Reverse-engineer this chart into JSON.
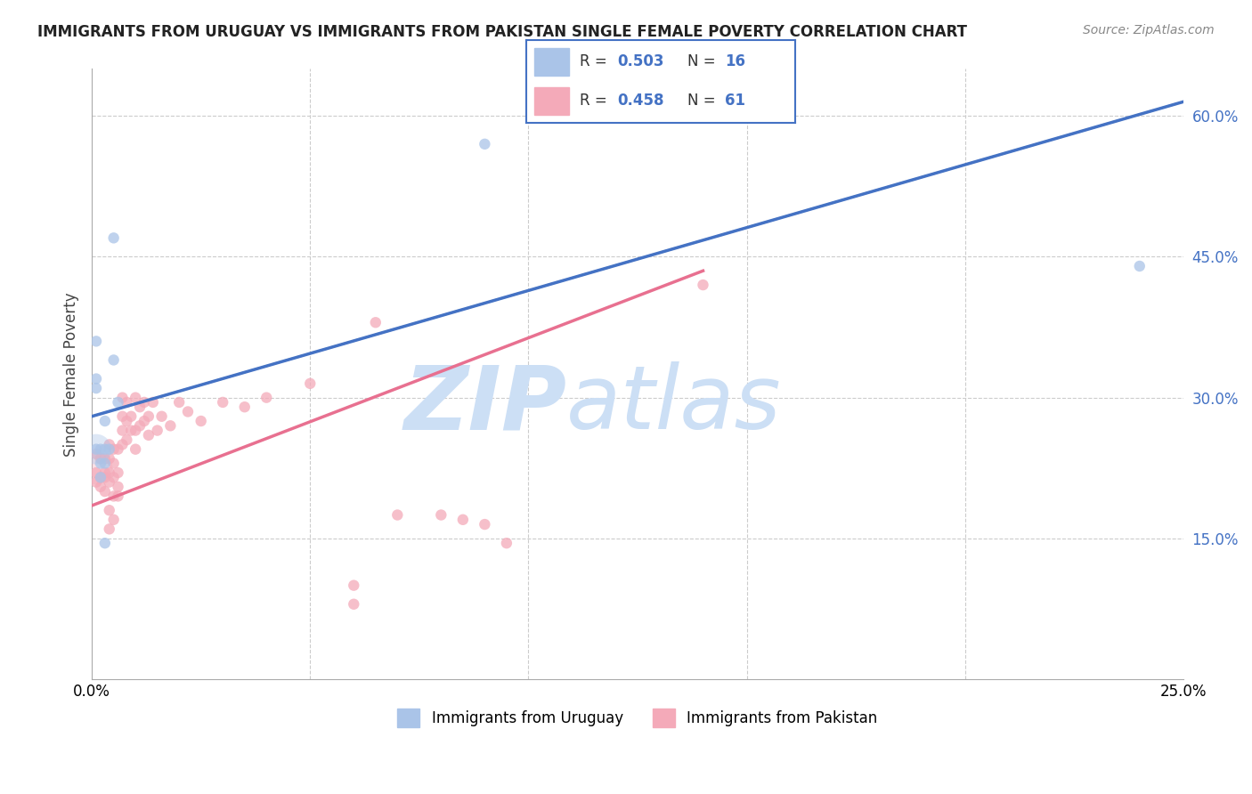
{
  "title": "IMMIGRANTS FROM URUGUAY VS IMMIGRANTS FROM PAKISTAN SINGLE FEMALE POVERTY CORRELATION CHART",
  "source": "Source: ZipAtlas.com",
  "ylabel": "Single Female Poverty",
  "xlim": [
    0.0,
    0.25
  ],
  "ylim": [
    0.0,
    0.65
  ],
  "x_ticks": [
    0.0,
    0.05,
    0.1,
    0.15,
    0.2,
    0.25
  ],
  "x_tick_labels": [
    "0.0%",
    "",
    "",
    "",
    "",
    "25.0%"
  ],
  "y_ticks_right": [
    0.15,
    0.3,
    0.45,
    0.6
  ],
  "y_tick_labels_right": [
    "15.0%",
    "30.0%",
    "45.0%",
    "60.0%"
  ],
  "background_color": "#ffffff",
  "grid_color": "#cccccc",
  "watermark_zip": "ZIP",
  "watermark_atlas": "atlas",
  "watermark_color_zip": "#ccdff5",
  "watermark_color_atlas": "#ccdff5",
  "uruguay_color": "#aac4e8",
  "pakistan_color": "#f4aab9",
  "trendline_uruguay_color": "#4472c4",
  "trendline_pakistan_color": "#e87090",
  "trendline_extension_color": "#c0c0c0",
  "r_n_color": "#4472c4",
  "legend_border_color": "#4472c4",
  "uruguay_trendline": [
    [
      0.0,
      0.28
    ],
    [
      0.25,
      0.615
    ]
  ],
  "pakistan_trendline": [
    [
      0.0,
      0.185
    ],
    [
      0.14,
      0.435
    ]
  ],
  "uruguay_scatter": [
    [
      0.001,
      0.245
    ],
    [
      0.002,
      0.245
    ],
    [
      0.003,
      0.245
    ],
    [
      0.004,
      0.245
    ],
    [
      0.002,
      0.23
    ],
    [
      0.003,
      0.23
    ],
    [
      0.002,
      0.215
    ],
    [
      0.001,
      0.32
    ],
    [
      0.001,
      0.36
    ],
    [
      0.005,
      0.34
    ],
    [
      0.001,
      0.31
    ],
    [
      0.006,
      0.295
    ],
    [
      0.003,
      0.275
    ],
    [
      0.003,
      0.145
    ],
    [
      0.005,
      0.47
    ],
    [
      0.24,
      0.44
    ],
    [
      0.09,
      0.57
    ]
  ],
  "pakistan_scatter": [
    [
      0.001,
      0.24
    ],
    [
      0.001,
      0.22
    ],
    [
      0.001,
      0.21
    ],
    [
      0.002,
      0.235
    ],
    [
      0.002,
      0.215
    ],
    [
      0.002,
      0.205
    ],
    [
      0.003,
      0.235
    ],
    [
      0.003,
      0.22
    ],
    [
      0.003,
      0.215
    ],
    [
      0.003,
      0.2
    ],
    [
      0.004,
      0.25
    ],
    [
      0.004,
      0.235
    ],
    [
      0.004,
      0.22
    ],
    [
      0.004,
      0.21
    ],
    [
      0.004,
      0.18
    ],
    [
      0.004,
      0.16
    ],
    [
      0.005,
      0.245
    ],
    [
      0.005,
      0.23
    ],
    [
      0.005,
      0.215
    ],
    [
      0.005,
      0.195
    ],
    [
      0.005,
      0.17
    ],
    [
      0.006,
      0.245
    ],
    [
      0.006,
      0.22
    ],
    [
      0.006,
      0.205
    ],
    [
      0.006,
      0.195
    ],
    [
      0.007,
      0.3
    ],
    [
      0.007,
      0.28
    ],
    [
      0.007,
      0.265
    ],
    [
      0.007,
      0.25
    ],
    [
      0.008,
      0.295
    ],
    [
      0.008,
      0.275
    ],
    [
      0.008,
      0.255
    ],
    [
      0.009,
      0.28
    ],
    [
      0.009,
      0.265
    ],
    [
      0.01,
      0.3
    ],
    [
      0.01,
      0.265
    ],
    [
      0.01,
      0.245
    ],
    [
      0.011,
      0.29
    ],
    [
      0.011,
      0.27
    ],
    [
      0.012,
      0.295
    ],
    [
      0.012,
      0.275
    ],
    [
      0.013,
      0.28
    ],
    [
      0.013,
      0.26
    ],
    [
      0.014,
      0.295
    ],
    [
      0.015,
      0.265
    ],
    [
      0.016,
      0.28
    ],
    [
      0.018,
      0.27
    ],
    [
      0.02,
      0.295
    ],
    [
      0.022,
      0.285
    ],
    [
      0.025,
      0.275
    ],
    [
      0.03,
      0.295
    ],
    [
      0.035,
      0.29
    ],
    [
      0.04,
      0.3
    ],
    [
      0.05,
      0.315
    ],
    [
      0.06,
      0.1
    ],
    [
      0.065,
      0.38
    ],
    [
      0.07,
      0.175
    ],
    [
      0.08,
      0.175
    ],
    [
      0.085,
      0.17
    ],
    [
      0.09,
      0.165
    ],
    [
      0.095,
      0.145
    ],
    [
      0.14,
      0.42
    ],
    [
      0.06,
      0.08
    ]
  ]
}
